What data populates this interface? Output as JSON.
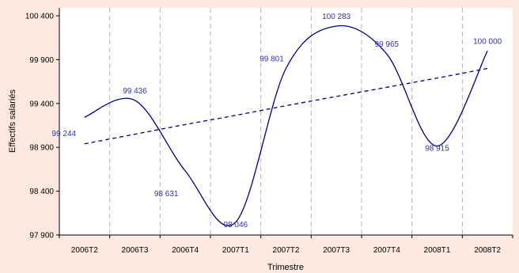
{
  "chart_data": {
    "type": "line",
    "xlabel": "Trimestre",
    "ylabel": "Effectifs salariés",
    "ylim": [
      97900,
      100400
    ],
    "yticks": [
      97900,
      98400,
      98900,
      99400,
      99900,
      100400
    ],
    "ytick_labels": [
      "97 900",
      "98 400",
      "98 900",
      "99 400",
      "99 900",
      "100 400"
    ],
    "categories": [
      "2006T2",
      "2006T3",
      "2006T4",
      "2007T1",
      "2007T2",
      "2007T3",
      "2007T4",
      "2008T1",
      "2008T2"
    ],
    "series": [
      {
        "style": "solid",
        "color": "#000080",
        "values": [
          99244,
          99436,
          98631,
          98046,
          99801,
          100283,
          99965,
          98915,
          100000
        ],
        "labels": [
          "99 244",
          "99 436",
          "98 631",
          "98 046",
          "99 801",
          "100 283",
          "99 965",
          "98 915",
          "100 000"
        ]
      },
      {
        "style": "dashed",
        "color": "#000080",
        "values": [
          98940,
          99050,
          99160,
          99265,
          99375,
          99480,
          99585,
          99690,
          99800
        ]
      }
    ],
    "grid": "vertical-dashed",
    "legend": "none",
    "label_color": "#3333aa",
    "plot_background": "#ffffff",
    "page_background": "#fde9e0"
  }
}
